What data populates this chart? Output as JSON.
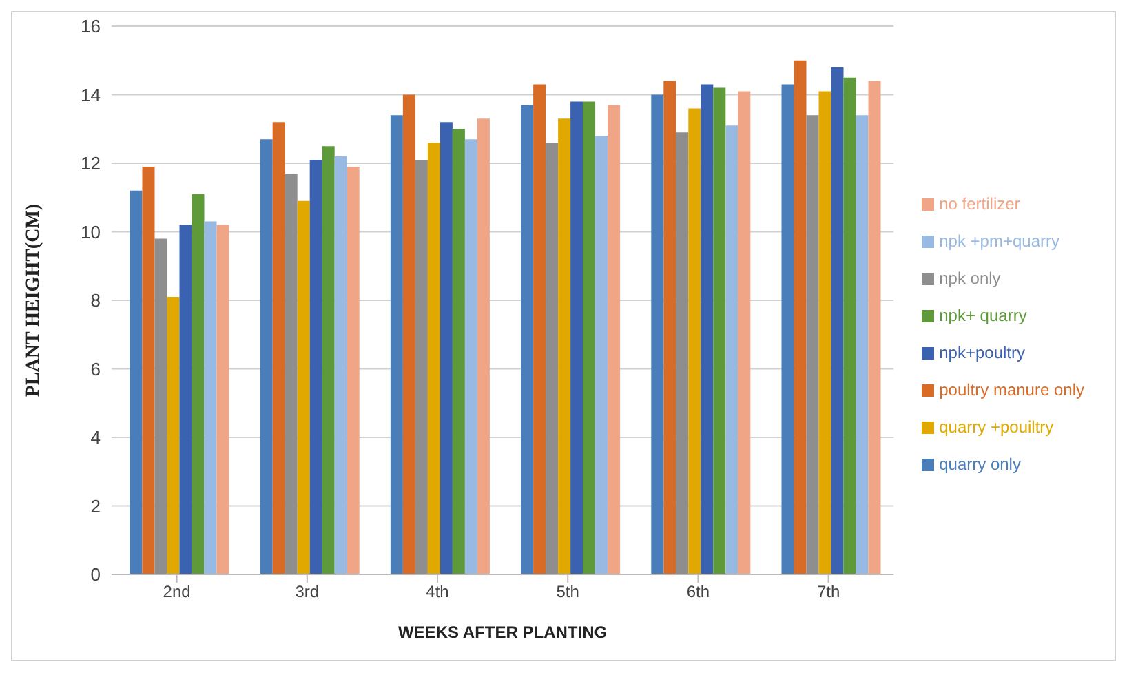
{
  "chart_data": {
    "type": "bar",
    "xlabel": "WEEKS AFTER PLANTING",
    "ylabel": "PLANT HEIGHT(CM)",
    "categories": [
      "2nd",
      "3rd",
      "4th",
      "5th",
      "6th",
      "7th"
    ],
    "ylim": [
      0,
      16
    ],
    "yticks": [
      0,
      2,
      4,
      6,
      8,
      10,
      12,
      14,
      16
    ],
    "grid": "y",
    "legend": "right",
    "series": [
      {
        "name": "quarry only",
        "color": "#4a7ebb",
        "values": [
          11.2,
          12.7,
          13.4,
          13.7,
          14.0,
          14.3
        ]
      },
      {
        "name": "poultry manure only",
        "color": "#d86b26",
        "values": [
          11.9,
          13.2,
          14.0,
          14.3,
          14.4,
          15.0
        ]
      },
      {
        "name": "npk only",
        "color": "#8e8e8e",
        "values": [
          9.8,
          11.7,
          12.1,
          12.6,
          12.9,
          13.4
        ]
      },
      {
        "name": "quarry +pouiltry",
        "color": "#e0a800",
        "values": [
          8.1,
          10.9,
          12.6,
          13.3,
          13.6,
          14.1
        ]
      },
      {
        "name": "npk+poultry",
        "color": "#3a62b0",
        "values": [
          10.2,
          12.1,
          13.2,
          13.8,
          14.3,
          14.8
        ]
      },
      {
        "name": "npk+ quarry",
        "color": "#5e9a3a",
        "values": [
          11.1,
          12.5,
          13.0,
          13.8,
          14.2,
          14.5
        ]
      },
      {
        "name": "npk +pm+quarry",
        "color": "#98b9e2",
        "values": [
          10.3,
          12.2,
          12.7,
          12.8,
          13.1,
          13.4
        ]
      },
      {
        "name": "no fertilizer",
        "color": "#f0a586",
        "values": [
          10.2,
          11.9,
          13.3,
          13.7,
          14.1,
          14.4
        ]
      }
    ]
  }
}
